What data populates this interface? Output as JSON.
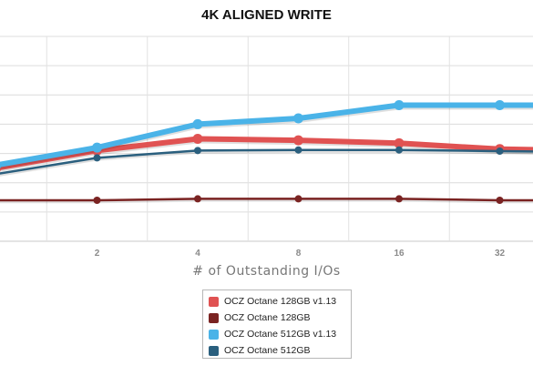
{
  "chart_data": {
    "type": "line",
    "title": "4K ALIGNED WRITE",
    "xlabel": "# of Outstanding I/Os",
    "ylabel": "",
    "grid": true,
    "legend_position": "bottom-center",
    "ylim": [
      0,
      7
    ],
    "x": [
      "1",
      "2",
      "4",
      "8",
      "16",
      "32",
      "64"
    ],
    "tick_labels": [
      "",
      "2",
      "4",
      "8",
      "16",
      "32",
      ""
    ],
    "series": [
      {
        "name": "OCZ Octane 128GB v1.13",
        "color": "#e05252",
        "width": 6,
        "values": [
          2.5,
          3.1,
          3.5,
          3.45,
          3.35,
          3.15,
          3.1
        ]
      },
      {
        "name": "OCZ Octane 128GB",
        "color": "#7a2322",
        "width": 2.5,
        "values": [
          1.4,
          1.4,
          1.45,
          1.45,
          1.45,
          1.4,
          1.4
        ]
      },
      {
        "name": "OCZ Octane 512GB v1.13",
        "color": "#4ab3e8",
        "width": 6,
        "values": [
          2.6,
          3.2,
          4.0,
          4.2,
          4.65,
          4.65,
          4.65
        ]
      },
      {
        "name": "OCZ Octane 512GB",
        "color": "#2a5f7e",
        "width": 2.5,
        "values": [
          2.3,
          2.85,
          3.1,
          3.12,
          3.12,
          3.08,
          3.05
        ]
      }
    ]
  }
}
